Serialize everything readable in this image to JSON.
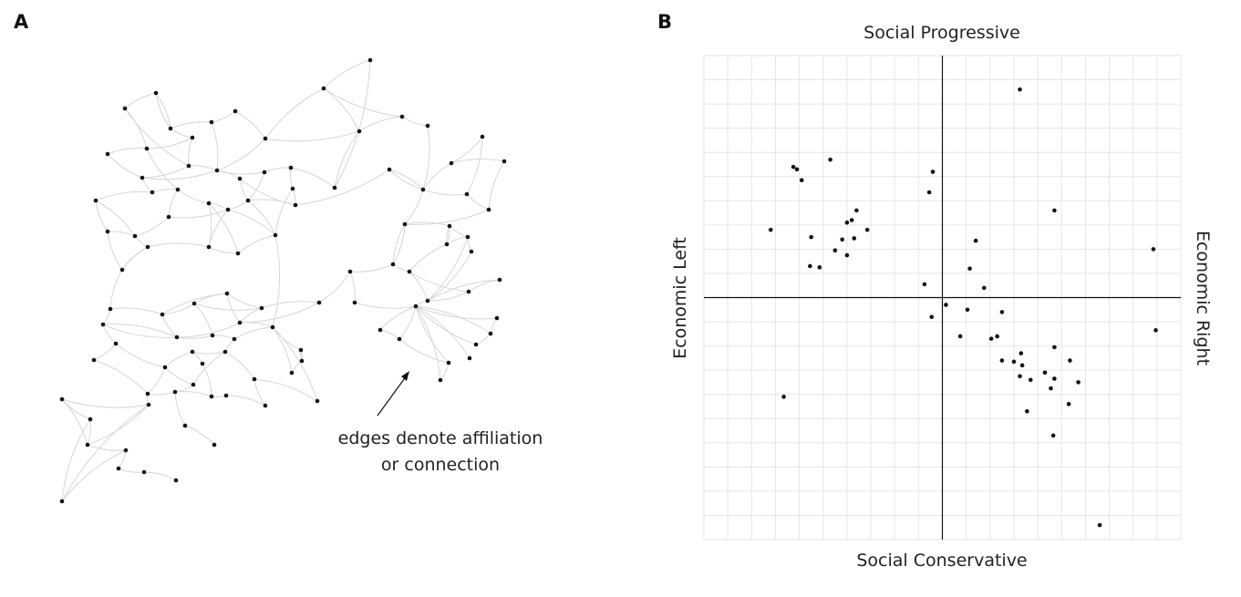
{
  "panels": {
    "a_label": "A",
    "b_label": "B"
  },
  "network": {
    "annotation_line1": "edges denote affiliation",
    "annotation_line2": "or connection",
    "node_color": "#111111",
    "edge_color": "#d6d6d6"
  },
  "compass": {
    "top_label": "Social Progressive",
    "bottom_label": "Social Conservative",
    "left_label": "Economic Left",
    "right_label": "Economic Right",
    "grid_color": "#e6e6e6",
    "axis_color": "#111111"
  },
  "chart_data": {
    "type": "scatter",
    "title": "",
    "x_label_left": "Economic Left",
    "x_label_right": "Economic Right",
    "y_label_top": "Social Progressive",
    "y_label_bottom": "Social Conservative",
    "xlim": [
      -10,
      10
    ],
    "ylim": [
      -10,
      10
    ],
    "grid": true,
    "points": [
      [
        3.25,
        8.6
      ],
      [
        -6.25,
        5.4
      ],
      [
        -5.9,
        4.85
      ],
      [
        -6.1,
        5.3
      ],
      [
        -4.7,
        5.7
      ],
      [
        -0.4,
        5.2
      ],
      [
        -0.55,
        4.35
      ],
      [
        -7.2,
        2.8
      ],
      [
        -5.5,
        2.5
      ],
      [
        -3.6,
        3.6
      ],
      [
        -3.8,
        3.2
      ],
      [
        -4.0,
        3.1
      ],
      [
        -3.15,
        2.8
      ],
      [
        -3.7,
        2.45
      ],
      [
        -4.2,
        2.4
      ],
      [
        -4.5,
        1.95
      ],
      [
        -4.0,
        1.75
      ],
      [
        -5.55,
        1.3
      ],
      [
        -5.15,
        1.25
      ],
      [
        1.4,
        2.35
      ],
      [
        4.7,
        3.6
      ],
      [
        8.85,
        2.0
      ],
      [
        1.15,
        1.2
      ],
      [
        1.75,
        0.4
      ],
      [
        -0.75,
        0.55
      ],
      [
        0.15,
        -0.3
      ],
      [
        1.05,
        -0.5
      ],
      [
        2.5,
        -0.6
      ],
      [
        -0.45,
        -0.8
      ],
      [
        0.75,
        -1.6
      ],
      [
        2.05,
        -1.7
      ],
      [
        2.3,
        -1.6
      ],
      [
        8.95,
        -1.35
      ],
      [
        4.7,
        -2.05
      ],
      [
        2.5,
        -2.6
      ],
      [
        3.0,
        -2.65
      ],
      [
        3.3,
        -2.3
      ],
      [
        3.35,
        -2.8
      ],
      [
        5.35,
        -2.6
      ],
      [
        3.25,
        -3.25
      ],
      [
        3.7,
        -3.4
      ],
      [
        4.3,
        -3.1
      ],
      [
        4.7,
        -3.35
      ],
      [
        5.7,
        -3.5
      ],
      [
        4.55,
        -3.75
      ],
      [
        5.3,
        -4.4
      ],
      [
        3.55,
        -4.7
      ],
      [
        -6.65,
        -4.1
      ],
      [
        4.65,
        -5.7
      ],
      [
        6.6,
        -9.4
      ]
    ]
  }
}
